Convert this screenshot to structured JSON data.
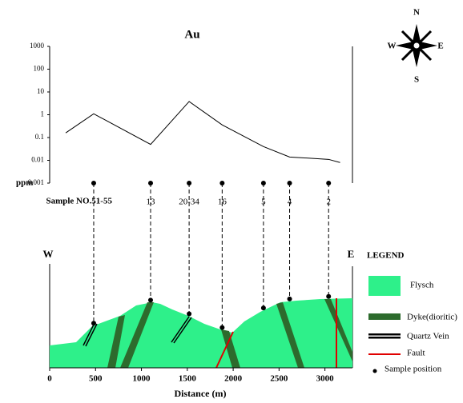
{
  "chart_data": {
    "type": "line",
    "title": "Au",
    "ylabel": "ppm",
    "xlabel": "Distance (m)",
    "log_y": true,
    "ylim": [
      0.001,
      1000
    ],
    "yticks": [
      1000,
      100,
      10,
      1,
      0.1,
      0.01,
      0.001
    ],
    "xlim": [
      0,
      3300
    ],
    "xticks": [
      0,
      500,
      1000,
      1500,
      2000,
      2500,
      3000
    ],
    "series": [
      {
        "color": "#000000",
        "x": [
          175,
          480,
          1100,
          1520,
          1880,
          2330,
          2615,
          3040,
          3165
        ],
        "values": [
          0.16,
          1.1,
          0.05,
          3.8,
          0.36,
          0.04,
          0.014,
          0.011,
          0.008
        ]
      }
    ],
    "samples": {
      "labels": [
        "Sample NO.51-55",
        "13",
        "20-34",
        "16",
        "5",
        "4",
        "2"
      ],
      "x": [
        480,
        1100,
        1520,
        1880,
        2330,
        2615,
        3040
      ]
    }
  },
  "section": {
    "west": "W",
    "east": "E"
  },
  "legend": {
    "title": "LEGEND",
    "items": [
      "Flysch",
      "Dyke(dioritic)",
      "Quartz Vein",
      "Fault",
      "Sample position"
    ]
  },
  "compass": {
    "n": "N",
    "s": "S",
    "w": "W",
    "e": "E"
  }
}
